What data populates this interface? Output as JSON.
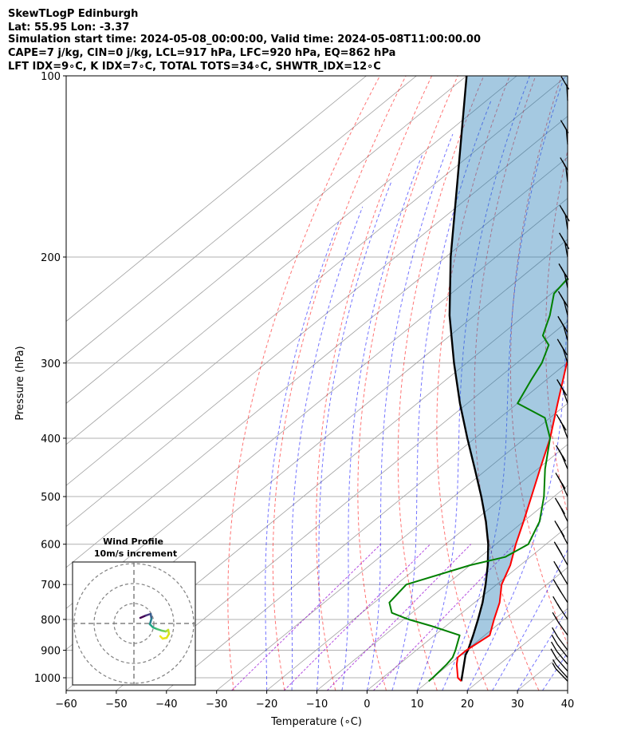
{
  "chart_data": {
    "type": "skewt-logp",
    "title_lines": [
      "SkewTLogP Edinburgh",
      "Lat: 55.95   Lon: -3.37",
      "Simulation start time: 2024-05-08_00:00:00, Valid time: 2024-05-08T11:00:00.00",
      "CAPE=7 j/kg, CIN=0 j/kg, LCL=917 hPa, LFC=920 hPa, EQ=862 hPa",
      "LFT IDX=9∘C, K IDX=7∘C, TOTAL TOTS=34∘C, SHWTR_IDX=12∘C"
    ],
    "xlabel": "Temperature (∘C)",
    "ylabel": "Pressure (hPa)",
    "xlim": [
      -60,
      40
    ],
    "ylim": [
      1050,
      100
    ],
    "x_ticks": [
      -60,
      -50,
      -40,
      -30,
      -20,
      -10,
      0,
      10,
      20,
      30,
      40
    ],
    "y_ticks": [
      1000,
      900,
      800,
      700,
      600,
      500,
      400,
      300,
      200,
      100
    ],
    "grid": true,
    "colors": {
      "temperature": "#ff0000",
      "dewpoint": "#008000",
      "parcel": "#000000",
      "cape_fill": "#1f77b4",
      "dry_adiabats": "#ff0000",
      "moist_adiabats": "#0000ff",
      "mixing_ratio": "#9400d3",
      "isotherms": "#a0a0a0"
    },
    "temperature": {
      "p": [
        1013,
        1000,
        950,
        925,
        900,
        850,
        800,
        750,
        700,
        650,
        600,
        550,
        500,
        450,
        400,
        350,
        300,
        270,
        250,
        235,
        225,
        210,
        200,
        190,
        180,
        170,
        160,
        150,
        140,
        120,
        110,
        100
      ],
      "t": [
        16.5,
        15,
        11.5,
        10,
        10,
        11,
        8,
        5,
        1,
        -2,
        -6,
        -10,
        -14.5,
        -19.5,
        -25,
        -32,
        -40,
        -45.2,
        -49.5,
        -53,
        -56,
        -58,
        -59,
        -59.6,
        -60.7,
        -61,
        -60.5,
        -60,
        -59.5,
        -58,
        -57.5,
        -57
      ]
    },
    "dewpoint": {
      "p": [
        1013,
        1000,
        950,
        925,
        900,
        850,
        820,
        800,
        780,
        750,
        700,
        650,
        630,
        600,
        550,
        500,
        450,
        400,
        370,
        350,
        320,
        300,
        280,
        270,
        250,
        230,
        210,
        200,
        180,
        170,
        160,
        150,
        140,
        130,
        120,
        110,
        100
      ],
      "t": [
        10,
        10,
        9.5,
        9,
        7.8,
        5,
        -3,
        -9,
        -14,
        -17,
        -18,
        -10,
        -5,
        -3.5,
        -6.8,
        -12,
        -18.5,
        -25,
        -31,
        -40,
        -43,
        -45,
        -48,
        -51.5,
        -55,
        -59.5,
        -61,
        -62.5,
        -64,
        -64.8,
        -67,
        -70,
        -75,
        -75,
        -75,
        -75,
        -77
      ]
    },
    "parcel": {
      "p": [
        1013,
        917,
        900,
        850,
        800,
        750,
        700,
        650,
        600,
        550,
        500,
        450,
        400,
        350,
        300,
        250,
        200,
        150,
        100
      ],
      "t": [
        16.5,
        11,
        10.3,
        7.7,
        4.8,
        1.6,
        -2.2,
        -6.5,
        -11.5,
        -17.5,
        -24.5,
        -32.5,
        -41.5,
        -51.5,
        -62.5,
        -75,
        -89,
        -106,
        -130
      ]
    },
    "wind_profile_inset": {
      "title": "Wind Profile",
      "subtitle": "10m/s increment",
      "range_rings_ms": [
        10,
        20,
        30
      ]
    },
    "wind_barbs": {
      "p": [
        1013,
        1000,
        975,
        950,
        925,
        900,
        850,
        800,
        750,
        700,
        650,
        600,
        550,
        500,
        450,
        400,
        350,
        300,
        275,
        250,
        225,
        200,
        180,
        150,
        130,
        110
      ],
      "speed_kt": [
        5,
        5,
        10,
        10,
        10,
        10,
        10,
        15,
        15,
        20,
        20,
        25,
        25,
        25,
        25,
        25,
        25,
        25,
        25,
        25,
        25,
        25,
        25,
        20,
        20,
        15
      ]
    }
  }
}
